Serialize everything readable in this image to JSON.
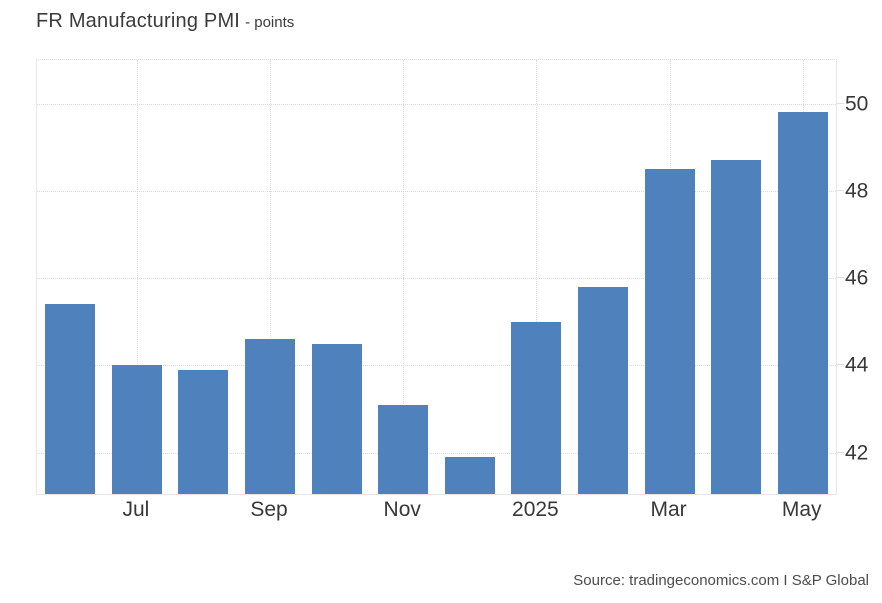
{
  "header": {
    "title": "FR Manufacturing PMI",
    "subtitle": "- points"
  },
  "footer": {
    "source": "Source: tradingeconomics.com I S&P Global"
  },
  "colors": {
    "bar": "#4f81bd",
    "grid": "#d9d9d9",
    "plot_border": "#e8e8e8",
    "tick_text": "#383838",
    "title_text": "#3b3b3b",
    "source_text": "#4c4c4c",
    "background": "#ffffff"
  },
  "chart_data": {
    "type": "bar",
    "title": "FR Manufacturing PMI",
    "unit_label": "points",
    "categories": [
      "Jun 2024",
      "Jul 2024",
      "Aug 2024",
      "Sep 2024",
      "Oct 2024",
      "Nov 2024",
      "Dec 2024",
      "Jan 2025",
      "Feb 2025",
      "Mar 2025",
      "Apr 2025",
      "May 2025"
    ],
    "values": [
      45.4,
      44.0,
      43.9,
      44.6,
      44.5,
      43.1,
      41.9,
      45.0,
      45.8,
      48.5,
      48.7,
      49.8
    ],
    "bar_color": "#4f81bd",
    "grid": true,
    "legend": null,
    "ylim": [
      41.05,
      51.0
    ],
    "yticks": [
      42,
      44,
      46,
      48,
      50
    ],
    "yticks_position": "right",
    "xticks": [
      {
        "index": 1,
        "label": "Jul"
      },
      {
        "index": 3,
        "label": "Sep"
      },
      {
        "index": 5,
        "label": "Nov"
      },
      {
        "index": 7,
        "label": "2025"
      },
      {
        "index": 9,
        "label": "Mar"
      },
      {
        "index": 11,
        "label": "May"
      }
    ]
  }
}
